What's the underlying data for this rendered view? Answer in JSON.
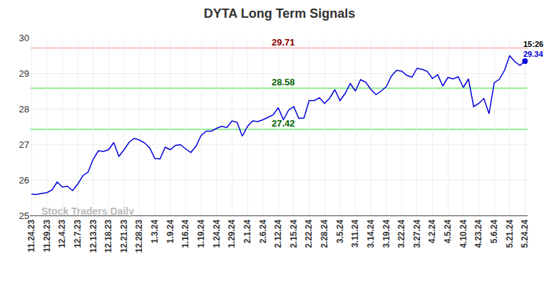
{
  "chart_data": {
    "type": "line",
    "title": "DYTA Long Term Signals",
    "categories": [
      "11.24.23",
      null,
      null,
      "11.29.23",
      null,
      null,
      "12.4.23",
      null,
      null,
      "12.7.23",
      null,
      null,
      "12.13.23",
      null,
      null,
      "12.18.23",
      null,
      null,
      "12.21.23",
      null,
      null,
      "12.28.23",
      null,
      null,
      "1.3.24",
      null,
      null,
      "1.9.24",
      null,
      null,
      "1.16.24",
      null,
      null,
      "1.19.24",
      null,
      null,
      "1.24.24",
      null,
      null,
      "1.29.24",
      null,
      null,
      "2.1.24",
      null,
      null,
      "2.6.24",
      null,
      null,
      "2.12.24",
      null,
      null,
      "2.15.24",
      null,
      null,
      "2.22.24",
      null,
      null,
      "2.28.24",
      null,
      null,
      "3.5.24",
      null,
      null,
      "3.11.24",
      null,
      null,
      "3.14.24",
      null,
      null,
      "3.19.24",
      null,
      null,
      "3.22.24",
      null,
      null,
      "3.27.24",
      null,
      null,
      "4.2.24",
      null,
      null,
      "4.5.24",
      null,
      null,
      "4.10.24",
      null,
      null,
      "4.23.24",
      null,
      null,
      "5.6.24",
      null,
      null,
      "5.21.24",
      null,
      null,
      "5.24.24"
    ],
    "values": [
      25.6,
      25.59,
      25.62,
      25.64,
      25.72,
      25.94,
      25.8,
      25.82,
      25.7,
      25.88,
      26.12,
      26.22,
      26.58,
      26.82,
      26.8,
      26.85,
      27.05,
      26.66,
      26.85,
      27.06,
      27.17,
      27.12,
      27.04,
      26.9,
      26.6,
      26.59,
      26.92,
      26.85,
      26.97,
      26.99,
      26.87,
      26.77,
      26.95,
      27.25,
      27.37,
      27.37,
      27.45,
      27.51,
      27.47,
      27.66,
      27.62,
      27.23,
      27.5,
      27.66,
      27.64,
      27.69,
      27.76,
      27.83,
      28.03,
      27.69,
      27.96,
      28.06,
      27.73,
      27.74,
      28.23,
      28.23,
      28.31,
      28.15,
      28.3,
      28.54,
      28.23,
      28.43,
      28.71,
      28.5,
      28.82,
      28.75,
      28.55,
      28.4,
      28.5,
      28.62,
      28.92,
      29.08,
      29.06,
      28.94,
      28.89,
      29.14,
      29.11,
      29.05,
      28.85,
      28.96,
      28.64,
      28.88,
      28.84,
      28.9,
      28.6,
      28.84,
      28.06,
      28.15,
      28.29,
      27.86,
      28.73,
      28.83,
      29.08,
      29.49,
      29.33,
      29.22,
      29.34
    ],
    "color": "#0000dd",
    "ylim": [
      25,
      30
    ],
    "yticks": [
      25,
      26,
      27,
      28,
      29,
      30
    ],
    "grid": true,
    "levels": [
      {
        "value": 29.71,
        "color": "#ffbcbc",
        "label_color": "#8b0000"
      },
      {
        "value": 28.58,
        "color": "#90ee90",
        "label_color": "#006400"
      },
      {
        "value": 27.42,
        "color": "#90ee90",
        "label_color": "#006400"
      }
    ],
    "last_time": "15:26",
    "watermark": "Stock Traders Daily"
  }
}
